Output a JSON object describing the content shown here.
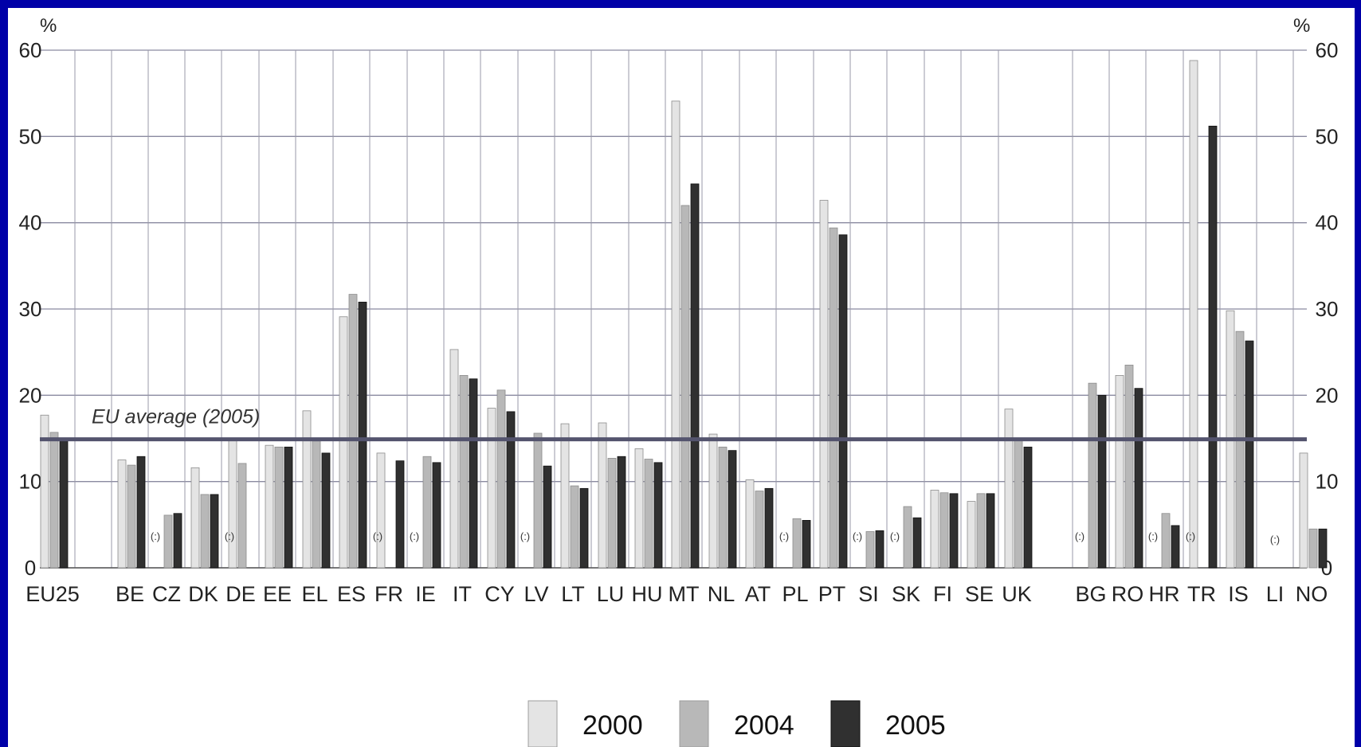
{
  "chart_data": {
    "type": "bar",
    "y_unit_left": "%",
    "y_unit_right": "%",
    "ylim": [
      0,
      60
    ],
    "yticks": [
      0,
      10,
      20,
      30,
      40,
      50,
      60
    ],
    "grid": true,
    "categories": [
      "EU25",
      "BE",
      "CZ",
      "DK",
      "DE",
      "EE",
      "EL",
      "ES",
      "FR",
      "IE",
      "IT",
      "CY",
      "LV",
      "LT",
      "LU",
      "HU",
      "MT",
      "NL",
      "AT",
      "PL",
      "PT",
      "SI",
      "SK",
      "FI",
      "SE",
      "UK",
      "BG",
      "RO",
      "HR",
      "TR",
      "IS",
      "LI",
      "NO"
    ],
    "series": [
      {
        "name": "2000",
        "color": "#e4e4e4",
        "values": [
          17.7,
          12.5,
          null,
          11.6,
          14.8,
          14.2,
          18.2,
          29.1,
          13.3,
          null,
          25.3,
          18.5,
          null,
          16.7,
          16.8,
          13.8,
          54.1,
          15.5,
          10.2,
          null,
          42.6,
          null,
          null,
          9.0,
          7.7,
          18.4,
          null,
          22.3,
          null,
          58.8,
          29.8,
          null,
          13.3
        ]
      },
      {
        "name": "2004",
        "color": "#b8b8b8",
        "values": [
          15.7,
          11.9,
          6.1,
          8.5,
          12.1,
          14.0,
          14.7,
          31.7,
          null,
          12.9,
          22.3,
          20.6,
          15.6,
          9.5,
          12.7,
          12.6,
          42.0,
          14.0,
          8.9,
          5.7,
          39.4,
          4.2,
          7.1,
          8.7,
          8.6,
          15.0,
          21.4,
          23.5,
          6.3,
          null,
          27.4,
          null,
          4.5
        ]
      },
      {
        "name": "2005",
        "color": "#303030",
        "values": [
          14.9,
          12.9,
          6.3,
          8.5,
          null,
          14.0,
          13.3,
          30.8,
          12.4,
          12.2,
          21.9,
          18.1,
          11.8,
          9.2,
          12.9,
          12.2,
          44.5,
          13.6,
          9.2,
          5.5,
          38.6,
          4.3,
          5.8,
          8.6,
          8.6,
          14.0,
          20.0,
          20.8,
          4.9,
          51.2,
          26.3,
          null,
          4.5
        ]
      }
    ],
    "not_available_marker": "(:)",
    "not_available": [
      "CZ",
      "DE",
      "FR",
      "IE",
      "LV",
      "PL",
      "SI",
      "SK",
      "BG",
      "HR",
      "TR",
      "LI"
    ],
    "reference_line": {
      "label": "EU average (2005)",
      "value": 14.9,
      "color": "#54546e"
    },
    "legend": {
      "position": "bottom",
      "entries": [
        "2000",
        "2004",
        "2005"
      ]
    }
  }
}
